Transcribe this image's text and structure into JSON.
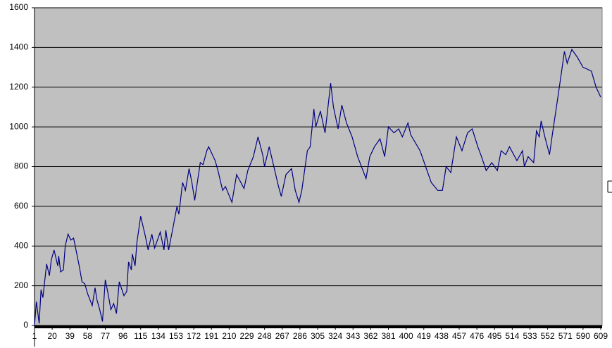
{
  "chart_data": {
    "type": "line",
    "x": [
      1,
      3,
      6,
      8,
      10,
      14,
      17,
      19,
      22,
      26,
      27,
      29,
      32,
      34,
      37,
      40,
      43,
      46,
      49,
      52,
      55,
      58,
      63,
      66,
      68,
      71,
      74,
      77,
      80,
      83,
      86,
      89,
      92,
      97,
      100,
      102,
      105,
      106,
      109,
      111,
      115,
      120,
      123,
      127,
      130,
      136,
      140,
      142,
      145,
      150,
      154,
      156,
      160,
      163,
      167,
      170,
      173,
      179,
      182,
      186,
      188,
      195,
      198,
      203,
      206,
      213,
      218,
      226,
      230,
      236,
      241,
      246,
      248,
      253,
      257,
      263,
      266,
      271,
      277,
      281,
      285,
      288,
      294,
      297,
      301,
      303,
      308,
      313,
      319,
      322,
      327,
      331,
      336,
      342,
      348,
      357,
      361,
      366,
      372,
      377,
      381,
      387,
      392,
      396,
      402,
      405,
      415,
      421,
      427,
      434,
      439,
      443,
      448,
      454,
      460,
      466,
      471,
      477,
      481,
      486,
      492,
      498,
      502,
      507,
      511,
      519,
      525,
      527,
      531,
      537,
      540,
      543,
      545,
      549,
      554,
      557,
      563,
      567,
      570,
      573,
      578,
      584,
      590,
      595,
      599,
      604,
      609
    ],
    "series": [
      {
        "color": "#000080",
        "values": [
          0,
          120,
          10,
          180,
          140,
          310,
          250,
          330,
          380,
          300,
          350,
          270,
          280,
          400,
          460,
          430,
          440,
          370,
          300,
          220,
          210,
          160,
          100,
          190,
          130,
          80,
          20,
          230,
          160,
          80,
          110,
          60,
          220,
          150,
          170,
          320,
          280,
          360,
          300,
          420,
          550,
          450,
          380,
          460,
          390,
          470,
          380,
          480,
          380,
          500,
          600,
          560,
          720,
          680,
          790,
          720,
          630,
          820,
          810,
          880,
          900,
          830,
          780,
          680,
          700,
          620,
          760,
          690,
          780,
          850,
          950,
          860,
          800,
          900,
          820,
          700,
          650,
          760,
          790,
          680,
          620,
          680,
          880,
          900,
          1090,
          1000,
          1080,
          970,
          1220,
          1100,
          990,
          1110,
          1020,
          950,
          850,
          740,
          850,
          900,
          940,
          850,
          1000,
          970,
          990,
          950,
          1020,
          960,
          880,
          800,
          720,
          680,
          680,
          800,
          770,
          950,
          880,
          970,
          990,
          900,
          850,
          780,
          820,
          780,
          880,
          860,
          900,
          830,
          880,
          800,
          850,
          820,
          980,
          950,
          1030,
          950,
          860,
          960,
          1150,
          1280,
          1380,
          1320,
          1390,
          1350,
          1300,
          1290,
          1280,
          1200,
          1150
        ]
      }
    ],
    "xlim": [
      1,
      609
    ],
    "xticks": [
      1,
      20,
      39,
      58,
      77,
      96,
      115,
      134,
      153,
      172,
      191,
      210,
      229,
      248,
      267,
      286,
      305,
      324,
      343,
      362,
      381,
      400,
      419,
      438,
      457,
      476,
      495,
      514,
      533,
      552,
      571,
      590,
      609
    ],
    "ylim": [
      0,
      1600
    ],
    "yticks": [
      0,
      200,
      400,
      600,
      800,
      1000,
      1200,
      1400,
      1600
    ],
    "grid": true
  }
}
